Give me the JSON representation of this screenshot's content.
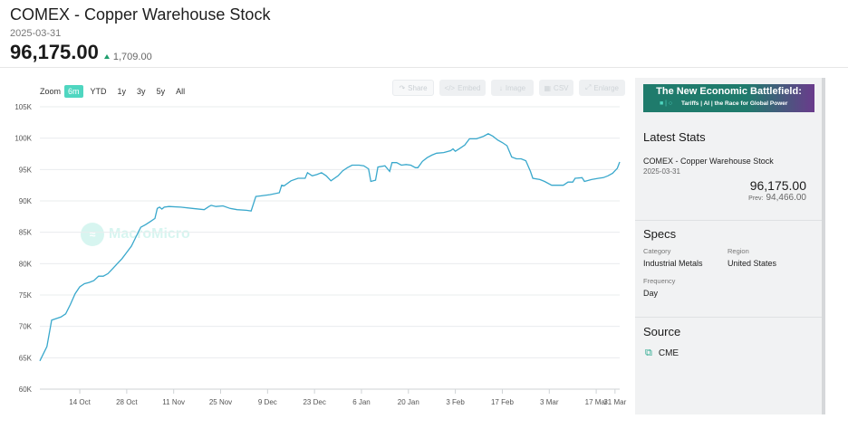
{
  "header": {
    "title": "COMEX - Copper Warehouse Stock",
    "date": "2025-03-31",
    "value": "96,175.00",
    "change": "1,709.00"
  },
  "zoom": {
    "label": "Zoom",
    "options": [
      "6m",
      "YTD",
      "1y",
      "3y",
      "5y",
      "All"
    ],
    "active": "6m"
  },
  "toolbar": {
    "share": "Share",
    "embed": "Embed",
    "image": "Image",
    "csv": "CSV",
    "enlarge": "Enlarge"
  },
  "watermark": "MacroMicro",
  "colors": {
    "line": "#39a8cc",
    "accent": "#4fd6c0",
    "up": "#1f9e6e"
  },
  "chart_data": {
    "type": "line",
    "series": [
      {
        "values": [
          [
            0,
            64500
          ],
          [
            3,
            66800
          ],
          [
            5,
            71000
          ],
          [
            9,
            71500
          ],
          [
            11,
            72000
          ],
          [
            13,
            73500
          ],
          [
            15,
            75200
          ],
          [
            17,
            76300
          ],
          [
            19,
            76800
          ],
          [
            21,
            77000
          ],
          [
            23,
            77300
          ],
          [
            25,
            78000
          ],
          [
            27,
            78000
          ],
          [
            29,
            78400
          ],
          [
            31,
            79200
          ],
          [
            33,
            80000
          ],
          [
            35,
            80800
          ],
          [
            37,
            81800
          ],
          [
            39,
            82800
          ],
          [
            41,
            84300
          ],
          [
            43,
            85800
          ],
          [
            45,
            86200
          ],
          [
            47,
            86700
          ],
          [
            49,
            87200
          ],
          [
            50,
            88800
          ],
          [
            51,
            89000
          ],
          [
            52,
            88700
          ],
          [
            53,
            89000
          ],
          [
            55,
            89100
          ],
          [
            60,
            89000
          ],
          [
            65,
            88800
          ],
          [
            70,
            88600
          ],
          [
            72,
            89100
          ],
          [
            73,
            89300
          ],
          [
            75,
            89100
          ],
          [
            78,
            89200
          ],
          [
            81,
            88800
          ],
          [
            84,
            88600
          ],
          [
            88,
            88500
          ],
          [
            90,
            88400
          ],
          [
            92,
            90700
          ],
          [
            94,
            90800
          ],
          [
            98,
            91000
          ],
          [
            102,
            91300
          ],
          [
            103,
            92500
          ],
          [
            104,
            92400
          ],
          [
            107,
            93200
          ],
          [
            110,
            93600
          ],
          [
            113,
            93600
          ],
          [
            114,
            94500
          ],
          [
            116,
            94000
          ],
          [
            118,
            94200
          ],
          [
            120,
            94500
          ],
          [
            122,
            94000
          ],
          [
            124,
            93200
          ],
          [
            127,
            94000
          ],
          [
            129,
            94800
          ],
          [
            131,
            95300
          ],
          [
            133,
            95700
          ],
          [
            136,
            95700
          ],
          [
            138,
            95600
          ],
          [
            140,
            95100
          ],
          [
            141,
            93100
          ],
          [
            143,
            93300
          ],
          [
            144,
            95400
          ],
          [
            147,
            95600
          ],
          [
            149,
            94700
          ],
          [
            150,
            96100
          ],
          [
            152,
            96100
          ],
          [
            154,
            95700
          ],
          [
            156,
            95800
          ],
          [
            158,
            95700
          ],
          [
            160,
            95300
          ],
          [
            161,
            95300
          ],
          [
            163,
            96300
          ],
          [
            165,
            96900
          ],
          [
            167,
            97300
          ],
          [
            169,
            97600
          ],
          [
            172,
            97700
          ],
          [
            175,
            98000
          ],
          [
            176,
            98300
          ],
          [
            177,
            97900
          ],
          [
            179,
            98400
          ],
          [
            181,
            98900
          ],
          [
            183,
            99900
          ],
          [
            186,
            99900
          ],
          [
            189,
            100300
          ],
          [
            191,
            100700
          ],
          [
            193,
            100300
          ],
          [
            195,
            99700
          ],
          [
            197,
            99300
          ],
          [
            199,
            98800
          ],
          [
            201,
            97000
          ],
          [
            203,
            96700
          ],
          [
            205,
            96700
          ],
          [
            207,
            96400
          ],
          [
            209,
            94700
          ],
          [
            210,
            93600
          ],
          [
            213,
            93400
          ],
          [
            215,
            93100
          ],
          [
            218,
            92500
          ],
          [
            221,
            92500
          ],
          [
            223,
            92500
          ],
          [
            225,
            93000
          ],
          [
            227,
            93000
          ],
          [
            228,
            93600
          ],
          [
            231,
            93700
          ],
          [
            232,
            93100
          ],
          [
            235,
            93400
          ],
          [
            238,
            93600
          ],
          [
            240,
            93700
          ],
          [
            242,
            94000
          ],
          [
            244,
            94400
          ],
          [
            246,
            95200
          ],
          [
            247,
            96200
          ]
        ]
      }
    ],
    "xlim": [
      0,
      247
    ],
    "ylim": [
      60000,
      105000
    ],
    "yticks": [
      60000,
      65000,
      70000,
      75000,
      80000,
      85000,
      90000,
      95000,
      100000,
      105000
    ],
    "ytick_labels": [
      "60K",
      "65K",
      "70K",
      "75K",
      "80K",
      "85K",
      "90K",
      "95K",
      "100K",
      "105K"
    ],
    "xticks": [
      {
        "x": 17,
        "label": "14 Oct"
      },
      {
        "x": 37,
        "label": "28 Oct"
      },
      {
        "x": 57,
        "label": "11 Nov"
      },
      {
        "x": 77,
        "label": "25 Nov"
      },
      {
        "x": 97,
        "label": "9 Dec"
      },
      {
        "x": 117,
        "label": "23 Dec"
      },
      {
        "x": 137,
        "label": "6 Jan"
      },
      {
        "x": 157,
        "label": "20 Jan"
      },
      {
        "x": 177,
        "label": "3 Feb"
      },
      {
        "x": 197,
        "label": "17 Feb"
      },
      {
        "x": 217,
        "label": "3 Mar"
      },
      {
        "x": 237,
        "label": "17 Mar"
      },
      {
        "x": 245,
        "label": "31 Mar"
      }
    ],
    "grid": true,
    "legend": "none"
  },
  "panel": {
    "banner_title": "The New Economic Battlefield:",
    "banner_sub": "Tariffs | AI | the Race for Global Power",
    "latest_title": "Latest Stats",
    "latest_name": "COMEX - Copper Warehouse Stock",
    "latest_date": "2025-03-31",
    "latest_value": "96,175.00",
    "prev_label": "Prev:",
    "prev_value": "94,466.00",
    "specs_title": "Specs",
    "category_label": "Category",
    "category_value": "Industrial Metals",
    "region_label": "Region",
    "region_value": "United States",
    "frequency_label": "Frequency",
    "frequency_value": "Day",
    "source_title": "Source",
    "source_value": "CME"
  }
}
